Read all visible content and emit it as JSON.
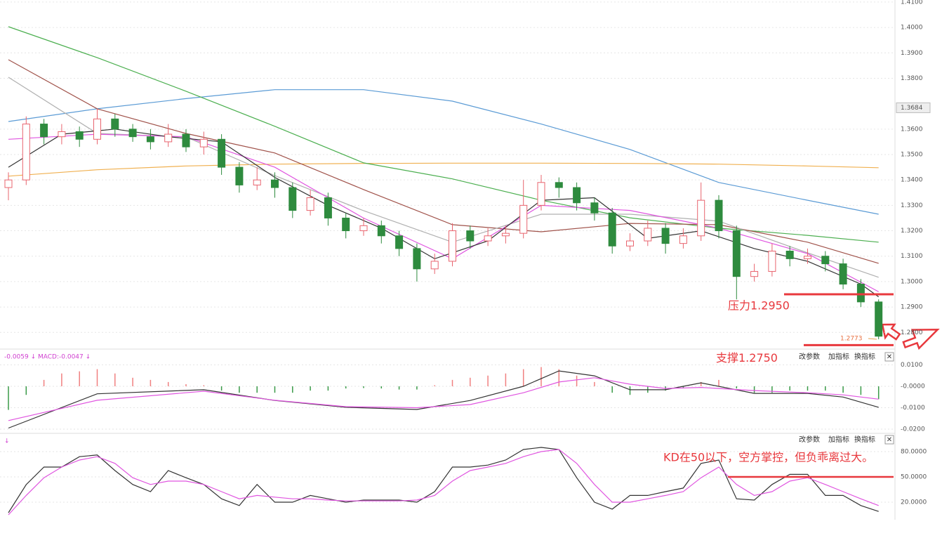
{
  "chart_data": [
    {
      "type": "candlestick",
      "ylim": [
        1.274,
        1.4108
      ],
      "yticks": [
        {
          "value": 1.41,
          "label": "1.4100"
        },
        {
          "value": 1.4,
          "label": "1.4000"
        },
        {
          "value": 1.39,
          "label": "1.3900"
        },
        {
          "value": 1.38,
          "label": "1.3800"
        },
        {
          "value": 1.36,
          "label": "1.3600"
        },
        {
          "value": 1.35,
          "label": "1.3500"
        },
        {
          "value": 1.34,
          "label": "1.3400"
        },
        {
          "value": 1.33,
          "label": "1.3300"
        },
        {
          "value": 1.32,
          "label": "1.3200"
        },
        {
          "value": 1.31,
          "label": "1.3100"
        },
        {
          "value": 1.3,
          "label": "1.3000"
        },
        {
          "value": 1.29,
          "label": "1.2900"
        },
        {
          "value": 1.28,
          "label": "1.2800"
        }
      ],
      "grid": true,
      "up_color": "#e8646e",
      "down_color": "#2e8b3e",
      "open": [
        1.337,
        1.34,
        1.362,
        1.357,
        1.359,
        1.356,
        1.364,
        1.36,
        1.357,
        1.355,
        1.358,
        1.353,
        1.356,
        1.345,
        1.338,
        1.34,
        1.337,
        1.328,
        1.333,
        1.325,
        1.32,
        1.322,
        1.318,
        1.313,
        1.305,
        1.308,
        1.32,
        1.316,
        1.318,
        1.319,
        1.33,
        1.339,
        1.337,
        1.331,
        1.327,
        1.314,
        1.316,
        1.321,
        1.315,
        1.318,
        1.332,
        1.32,
        1.302,
        1.304,
        1.312,
        1.309,
        1.31,
        1.307,
        1.299,
        1.292
      ],
      "high": [
        1.343,
        1.365,
        1.364,
        1.362,
        1.361,
        1.368,
        1.366,
        1.362,
        1.36,
        1.362,
        1.36,
        1.359,
        1.358,
        1.347,
        1.345,
        1.343,
        1.339,
        1.336,
        1.335,
        1.327,
        1.325,
        1.324,
        1.32,
        1.315,
        1.311,
        1.323,
        1.322,
        1.321,
        1.322,
        1.34,
        1.342,
        1.341,
        1.339,
        1.333,
        1.329,
        1.319,
        1.324,
        1.323,
        1.321,
        1.339,
        1.334,
        1.322,
        1.307,
        1.315,
        1.314,
        1.313,
        1.312,
        1.309,
        1.301,
        1.293
      ],
      "low": [
        1.332,
        1.338,
        1.354,
        1.354,
        1.353,
        1.354,
        1.357,
        1.355,
        1.352,
        1.353,
        1.351,
        1.35,
        1.342,
        1.335,
        1.336,
        1.333,
        1.325,
        1.326,
        1.322,
        1.317,
        1.318,
        1.315,
        1.31,
        1.3,
        1.303,
        1.306,
        1.313,
        1.314,
        1.315,
        1.317,
        1.328,
        1.333,
        1.328,
        1.324,
        1.311,
        1.312,
        1.314,
        1.311,
        1.313,
        1.316,
        1.317,
        1.293,
        1.3,
        1.302,
        1.306,
        1.307,
        1.304,
        1.297,
        1.29,
        1.2773
      ],
      "close": [
        1.34,
        1.362,
        1.357,
        1.359,
        1.356,
        1.364,
        1.36,
        1.357,
        1.355,
        1.358,
        1.353,
        1.356,
        1.345,
        1.338,
        1.34,
        1.337,
        1.328,
        1.333,
        1.325,
        1.32,
        1.322,
        1.318,
        1.313,
        1.305,
        1.308,
        1.32,
        1.316,
        1.318,
        1.319,
        1.33,
        1.339,
        1.337,
        1.331,
        1.327,
        1.314,
        1.316,
        1.321,
        1.315,
        1.318,
        1.332,
        1.32,
        1.302,
        1.304,
        1.312,
        1.309,
        1.31,
        1.307,
        1.299,
        1.292,
        1.2785
      ],
      "overlays": [
        {
          "color": "#5b9bd5",
          "x": [
            0,
            5,
            10,
            15,
            20,
            25,
            30,
            35,
            40,
            45,
            49
          ],
          "values": [
            1.363,
            1.368,
            1.372,
            1.3755,
            1.3755,
            1.371,
            1.362,
            1.352,
            1.339,
            1.332,
            1.3265
          ]
        },
        {
          "color": "#f0b050",
          "x": [
            0,
            5,
            10,
            15,
            20,
            25,
            30,
            35,
            40,
            45,
            49
          ],
          "values": [
            1.3415,
            1.344,
            1.3455,
            1.3462,
            1.3465,
            1.3466,
            1.3466,
            1.3465,
            1.3462,
            1.3455,
            1.3448
          ]
        },
        {
          "color": "#4caf50",
          "x": [
            0,
            5,
            10,
            15,
            20,
            25,
            30,
            35,
            40,
            45,
            49
          ],
          "values": [
            1.4003,
            1.3881,
            1.3749,
            1.3611,
            1.3467,
            1.3404,
            1.332,
            1.3251,
            1.321,
            1.3182,
            1.3155
          ]
        },
        {
          "color": "#a0524a",
          "x": [
            0,
            5,
            10,
            15,
            20,
            25,
            30,
            35,
            40,
            45,
            49
          ],
          "values": [
            1.3873,
            1.368,
            1.3583,
            1.3506,
            1.3362,
            1.3224,
            1.3196,
            1.3229,
            1.3224,
            1.3155,
            1.3072
          ]
        },
        {
          "color": "#b0b0b0",
          "x": [
            0,
            5,
            10,
            15,
            20,
            25,
            30,
            35,
            40,
            45,
            49
          ],
          "values": [
            1.3804,
            1.3583,
            1.3569,
            1.3417,
            1.3279,
            1.3155,
            1.3265,
            1.3265,
            1.3238,
            1.3113,
            1.3017
          ]
        },
        {
          "color": "#e055e0",
          "x": [
            0,
            5,
            10,
            15,
            20,
            25,
            30,
            35,
            40,
            45,
            49
          ],
          "values": [
            1.356,
            1.358,
            1.357,
            1.345,
            1.325,
            1.309,
            1.33,
            1.328,
            1.321,
            1.311,
            1.296
          ]
        },
        {
          "color": "#333333",
          "x": [
            0,
            3,
            6,
            9,
            12,
            15,
            18,
            21,
            24,
            27,
            30,
            33,
            36,
            39,
            42,
            45,
            48,
            49
          ],
          "values": [
            1.345,
            1.358,
            1.36,
            1.357,
            1.355,
            1.341,
            1.33,
            1.321,
            1.309,
            1.316,
            1.332,
            1.333,
            1.317,
            1.32,
            1.313,
            1.308,
            1.299,
            1.294
          ]
        }
      ],
      "price_marker": {
        "value": 1.3684,
        "label": "1.3684"
      },
      "low_label": {
        "value": 1.2773,
        "label": "1.2773"
      },
      "levels": [
        {
          "value": 1.295,
          "label": "压力1.2950"
        },
        {
          "value": 1.275,
          "label": "支撑1.2750"
        }
      ],
      "level_color": "#e8383d"
    },
    {
      "type": "macd",
      "header": "-0.0059 ↓ MACD:-0.0047 ↓",
      "buttons": [
        "改参数",
        "加指标",
        "换指标",
        "✕"
      ],
      "ylim": [
        -0.0213,
        0.0164
      ],
      "yticks": [
        {
          "value": 0.01,
          "label": "0.0100"
        },
        {
          "value": 0,
          "label": "-0.0000"
        },
        {
          "value": -0.01,
          "label": "-0.0100"
        },
        {
          "value": -0.02,
          "label": "-0.0200"
        }
      ],
      "up_color": "#f08080",
      "down_color": "#3a9a48",
      "histogram": [
        -0.011,
        -0.004,
        0.003,
        0.006,
        0.007,
        0.008,
        0.006,
        0.004,
        0.003,
        0.002,
        0.001,
        0.0005,
        -0.002,
        -0.003,
        -0.003,
        -0.003,
        -0.003,
        -0.002,
        -0.002,
        -0.001,
        -0.0008,
        -0.001,
        -0.0015,
        -0.0015,
        0.0005,
        0.003,
        0.004,
        0.005,
        0.006,
        0.008,
        0.009,
        0.008,
        0.005,
        0.002,
        -0.003,
        -0.004,
        -0.003,
        -0.002,
        -0.001,
        0.002,
        0.003,
        -0.001,
        -0.003,
        -0.003,
        -0.002,
        -0.002,
        -0.002,
        -0.003,
        -0.004,
        -0.006
      ],
      "series": [
        {
          "color": "#333333",
          "x": [
            0,
            5,
            11,
            15,
            19,
            23,
            26,
            29,
            31,
            33,
            35,
            37,
            39,
            42,
            45,
            47,
            49
          ],
          "values": [
            -0.0195,
            -0.0035,
            -0.0016,
            -0.0066,
            -0.0098,
            -0.0108,
            -0.0066,
            0,
            0.0072,
            0.0049,
            -0.0016,
            -0.0016,
            0.0016,
            -0.0033,
            -0.0033,
            -0.005,
            -0.0098
          ]
        },
        {
          "color": "#e055e0",
          "x": [
            0,
            5,
            11,
            15,
            19,
            23,
            26,
            29,
            31,
            33,
            35,
            37,
            39,
            42,
            45,
            47,
            49
          ],
          "values": [
            -0.016,
            -0.0065,
            -0.0023,
            -0.0065,
            -0.0095,
            -0.01,
            -0.0085,
            -0.003,
            0.002,
            0.004,
            0.001,
            -0.001,
            -0.0005,
            -0.002,
            -0.003,
            -0.004,
            -0.006
          ]
        }
      ]
    },
    {
      "type": "kd",
      "header": "↓",
      "buttons": [
        "改参数",
        "加指标",
        "换指标",
        "✕"
      ],
      "ylim": [
        3.3,
        99.2
      ],
      "yticks": [
        {
          "value": 80,
          "label": "80.0000"
        },
        {
          "value": 50,
          "label": "50.0000"
        },
        {
          "value": 20,
          "label": "20.0000"
        }
      ],
      "series": [
        {
          "color": "#333333",
          "values": [
            7.5,
            40.8,
            61.7,
            61.7,
            74,
            76,
            57.5,
            41,
            32.5,
            57.5,
            49,
            41,
            24,
            16,
            41,
            20,
            20,
            28,
            24,
            20,
            22.5,
            22.5,
            22.5,
            20,
            32.5,
            61.7,
            61.7,
            64,
            70,
            82.5,
            85,
            82.5,
            49,
            20,
            11.7,
            28,
            28,
            32.5,
            36.7,
            66,
            70,
            24,
            22.5,
            41,
            53,
            53,
            28,
            28,
            16,
            9
          ]
        },
        {
          "color": "#e055e0",
          "values": [
            5,
            28,
            49,
            61.7,
            70,
            74,
            66,
            49,
            41,
            45,
            45,
            41,
            32.5,
            24,
            28,
            26,
            24,
            24,
            22.5,
            21.5,
            21.5,
            21.5,
            21.5,
            22.5,
            28,
            45,
            57.5,
            61.7,
            66,
            74,
            80,
            82.5,
            66,
            41,
            20,
            20,
            24,
            28,
            32.5,
            49,
            61.7,
            41,
            28,
            32.5,
            45,
            49,
            41,
            32.5,
            24,
            16
          ]
        }
      ],
      "note": "KD在50以下，空方掌控，但负乖离过大。",
      "ref_line": 50,
      "ref_color": "#e8383d"
    }
  ]
}
